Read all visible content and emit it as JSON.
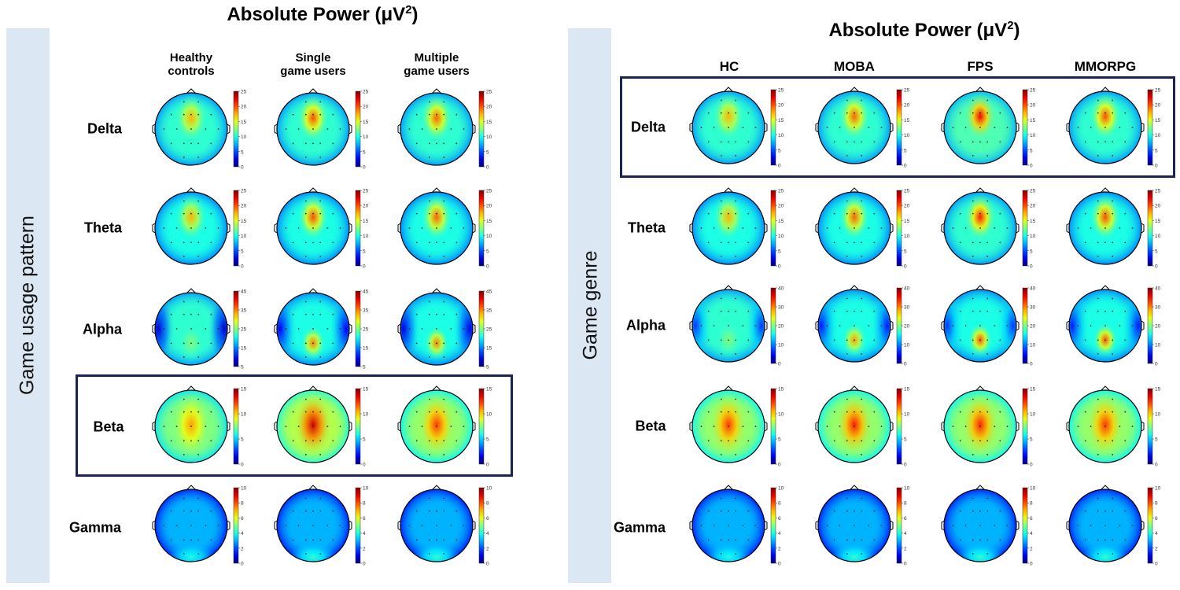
{
  "left_panel": {
    "title": "Absolute Power (μV",
    "title_sup": "2",
    "title_close": ")",
    "side_label": "Game usage pattern",
    "columns": [
      "Healthy\ncontrols",
      "Single\ngame users",
      "Multiple\ngame users"
    ],
    "rows": [
      {
        "name": "Delta",
        "ticks": [
          "25",
          "20",
          "15",
          "10",
          "5",
          "0"
        ]
      },
      {
        "name": "Theta",
        "ticks": [
          "25",
          "20",
          "15",
          "10",
          "5",
          "0"
        ]
      },
      {
        "name": "Alpha",
        "ticks": [
          "45",
          "35",
          "25",
          "15",
          "5"
        ]
      },
      {
        "name": "Beta",
        "ticks": [
          "15",
          "10",
          "5",
          "0"
        ]
      },
      {
        "name": "Gamma",
        "ticks": [
          "10",
          "8",
          "6",
          "4",
          "2",
          "0"
        ]
      }
    ],
    "highlighted_row": "Beta"
  },
  "right_panel": {
    "title": "Absolute Power (μV",
    "title_sup": "2",
    "title_close": ")",
    "side_label": "Game genre",
    "columns": [
      "HC",
      "MOBA",
      "FPS",
      "MMORPG"
    ],
    "rows": [
      {
        "name": "Delta",
        "ticks": [
          "25",
          "20",
          "15",
          "10",
          "5",
          "0"
        ]
      },
      {
        "name": "Theta",
        "ticks": [
          "25",
          "20",
          "15",
          "10",
          "5",
          "0"
        ]
      },
      {
        "name": "Alpha",
        "ticks": [
          "40",
          "30",
          "20",
          "10",
          "0"
        ]
      },
      {
        "name": "Beta",
        "ticks": [
          "15",
          "10",
          "5",
          "0"
        ]
      },
      {
        "name": "Gamma",
        "ticks": [
          "10",
          "8",
          "6",
          "4",
          "2",
          "0"
        ]
      }
    ],
    "highlighted_row": "Delta"
  },
  "colormap": "jet",
  "colors": {
    "highlight_box": "#1b2350",
    "side_band": "#dce7f4"
  },
  "maps": {
    "left": [
      [
        {
          "base": 0.42,
          "hot": 0.7,
          "focus": "frontal"
        },
        {
          "base": 0.42,
          "hot": 0.8,
          "focus": "frontal"
        },
        {
          "base": 0.42,
          "hot": 0.78,
          "focus": "frontal"
        }
      ],
      [
        {
          "base": 0.4,
          "hot": 0.7,
          "focus": "frontal"
        },
        {
          "base": 0.4,
          "hot": 0.8,
          "focus": "frontal"
        },
        {
          "base": 0.4,
          "hot": 0.78,
          "focus": "frontal"
        }
      ],
      [
        {
          "base": 0.42,
          "hot": 0.5,
          "focus": "occipital",
          "sides": 0.08
        },
        {
          "base": 0.4,
          "hot": 0.75,
          "focus": "occipital",
          "sides": 0.12
        },
        {
          "base": 0.4,
          "hot": 0.75,
          "focus": "occipital",
          "sides": 0.1
        }
      ],
      [
        {
          "base": 0.5,
          "hot": 0.72,
          "focus": "central"
        },
        {
          "base": 0.55,
          "hot": 0.92,
          "focus": "central"
        },
        {
          "base": 0.52,
          "hot": 0.82,
          "focus": "central"
        }
      ],
      [
        {
          "base": 0.3,
          "hot": 0.4,
          "focus": "posterior-light"
        },
        {
          "base": 0.3,
          "hot": 0.42,
          "focus": "posterior-light"
        },
        {
          "base": 0.3,
          "hot": 0.42,
          "focus": "posterior-light"
        }
      ]
    ],
    "right": [
      [
        {
          "base": 0.42,
          "hot": 0.7,
          "focus": "frontal"
        },
        {
          "base": 0.42,
          "hot": 0.78,
          "focus": "frontal"
        },
        {
          "base": 0.45,
          "hot": 0.88,
          "focus": "frontal"
        },
        {
          "base": 0.42,
          "hot": 0.8,
          "focus": "frontal"
        }
      ],
      [
        {
          "base": 0.4,
          "hot": 0.7,
          "focus": "frontal"
        },
        {
          "base": 0.4,
          "hot": 0.78,
          "focus": "frontal"
        },
        {
          "base": 0.42,
          "hot": 0.85,
          "focus": "frontal"
        },
        {
          "base": 0.4,
          "hot": 0.8,
          "focus": "frontal"
        }
      ],
      [
        {
          "base": 0.42,
          "hot": 0.5,
          "focus": "occipital",
          "sides": 0.18
        },
        {
          "base": 0.4,
          "hot": 0.72,
          "focus": "occipital",
          "sides": 0.15
        },
        {
          "base": 0.4,
          "hot": 0.8,
          "focus": "occipital",
          "sides": 0.18
        },
        {
          "base": 0.4,
          "hot": 0.8,
          "focus": "occipital",
          "sides": 0.15
        }
      ],
      [
        {
          "base": 0.52,
          "hot": 0.82,
          "focus": "central"
        },
        {
          "base": 0.52,
          "hot": 0.85,
          "focus": "central"
        },
        {
          "base": 0.52,
          "hot": 0.84,
          "focus": "central"
        },
        {
          "base": 0.52,
          "hot": 0.82,
          "focus": "central"
        }
      ],
      [
        {
          "base": 0.3,
          "hot": 0.4,
          "focus": "posterior-light"
        },
        {
          "base": 0.3,
          "hot": 0.42,
          "focus": "posterior-light"
        },
        {
          "base": 0.3,
          "hot": 0.42,
          "focus": "posterior-light"
        },
        {
          "base": 0.3,
          "hot": 0.42,
          "focus": "posterior-light"
        }
      ]
    ]
  }
}
